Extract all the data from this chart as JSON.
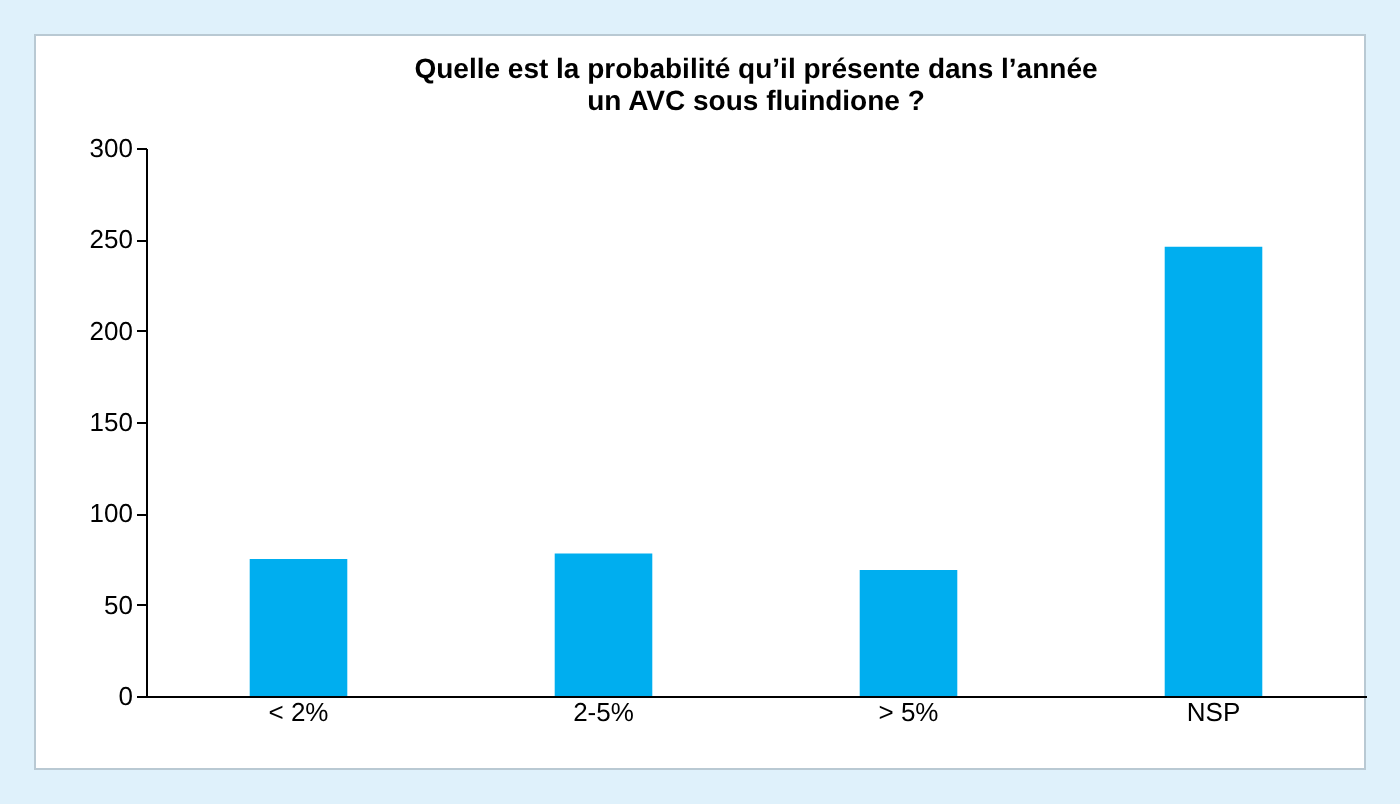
{
  "chart_data": {
    "type": "bar",
    "title": "Quelle est la probabilité qu’il présente dans l’année\nun AVC sous fluindione ?",
    "categories": [
      "< 2%",
      "2-5%",
      "> 5%",
      "NSP"
    ],
    "values": [
      75,
      78,
      69,
      246
    ],
    "color": "#00aeef",
    "ylim": [
      0,
      300
    ],
    "yticks": [
      0,
      50,
      100,
      150,
      200,
      250,
      300
    ],
    "grid": false
  }
}
